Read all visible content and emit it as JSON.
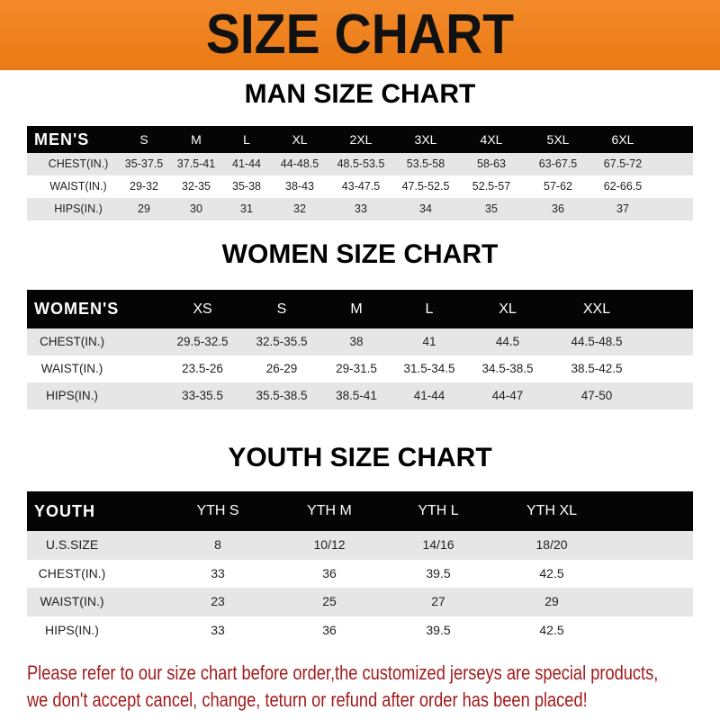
{
  "banner": {
    "title": "SIZE CHART",
    "color": "#f0821e"
  },
  "men": {
    "title": "MAN SIZE CHART",
    "header": [
      "MEN'S",
      "S",
      "M",
      "L",
      "XL",
      "2XL",
      "3XL",
      "4XL",
      "5XL",
      "6XL"
    ],
    "rows": [
      [
        "CHEST(IN.)",
        "35-37.5",
        "37.5-41",
        "41-44",
        "44-48.5",
        "48.5-53.5",
        "53.5-58",
        "58-63",
        "63-67.5",
        "67.5-72"
      ],
      [
        "WAIST(IN.)",
        "29-32",
        "32-35",
        "35-38",
        "38-43",
        "43-47.5",
        "47.5-52.5",
        "52.5-57",
        "57-62",
        "62-66.5"
      ],
      [
        "HIPS(IN.)",
        "29",
        "30",
        "31",
        "32",
        "33",
        "34",
        "35",
        "36",
        "37"
      ]
    ]
  },
  "women": {
    "title": "WOMEN SIZE CHART",
    "header": [
      "WOMEN'S",
      "XS",
      "S",
      "M",
      "L",
      "XL",
      "XXL"
    ],
    "rows": [
      [
        "CHEST(IN.)",
        "29.5-32.5",
        "32.5-35.5",
        "38",
        "41",
        "44.5",
        "44.5-48.5"
      ],
      [
        "WAIST(IN.)",
        "23.5-26",
        "26-29",
        "29-31.5",
        "31.5-34.5",
        "34.5-38.5",
        "38.5-42.5"
      ],
      [
        "HIPS(IN.)",
        "33-35.5",
        "35.5-38.5",
        "38.5-41",
        "41-44",
        "44-47",
        "47-50"
      ]
    ]
  },
  "youth": {
    "title": "YOUTH SIZE CHART",
    "header": [
      "YOUTH",
      "YTH S",
      "YTH M",
      "YTH L",
      "YTH XL"
    ],
    "rows": [
      [
        "U.S.SIZE",
        "8",
        "10/12",
        "14/16",
        "18/20"
      ],
      [
        "CHEST(IN.)",
        "33",
        "36",
        "39.5",
        "42.5"
      ],
      [
        "WAIST(IN.)",
        "23",
        "25",
        "27",
        "29"
      ],
      [
        "HIPS(IN.)",
        "33",
        "36",
        "39.5",
        "42.5"
      ]
    ]
  },
  "note": {
    "line1": "Please refer to our size chart before order,the customized jerseys are special products,",
    "line2": "we don't accept cancel, change, teturn or refund after order has been placed!",
    "color": "#a31b1b"
  }
}
